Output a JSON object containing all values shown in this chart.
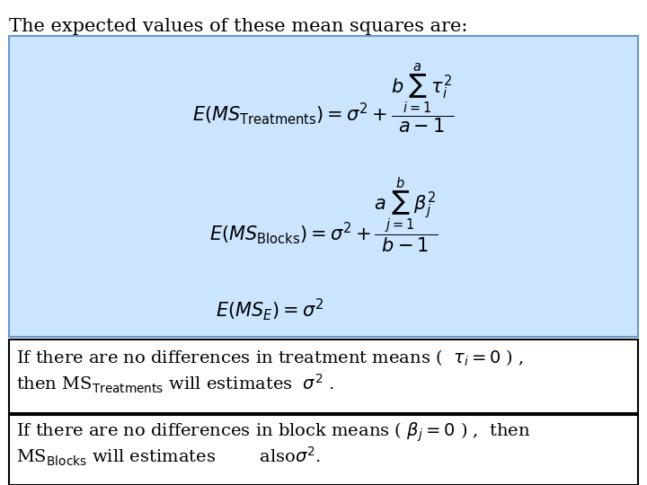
{
  "title": "The expected values of these mean squares are:",
  "title_fontsize": 15,
  "bg_color": "#ffffff",
  "box1_bg": "#cce5ff",
  "box1_border": "#6699cc",
  "box2_bg": "#ffffff",
  "box2_border": "#000000",
  "box3_bg": "#ffffff",
  "box3_border": "#000000",
  "eq1": "$E(MS_{\\mathrm{Treatments}}) = \\sigma^2 + \\dfrac{b\\sum_{i=1}^{a} \\tau_i^2}{a-1}$",
  "eq2": "$E(MS_{\\mathrm{Blocks}}) = \\sigma^2 + \\dfrac{a\\sum_{j=1}^{b} \\beta_j^2}{b-1}$",
  "eq3": "$E(MS_E) = \\sigma^2$",
  "eq_fontsize": 15,
  "text_fontsize": 14
}
